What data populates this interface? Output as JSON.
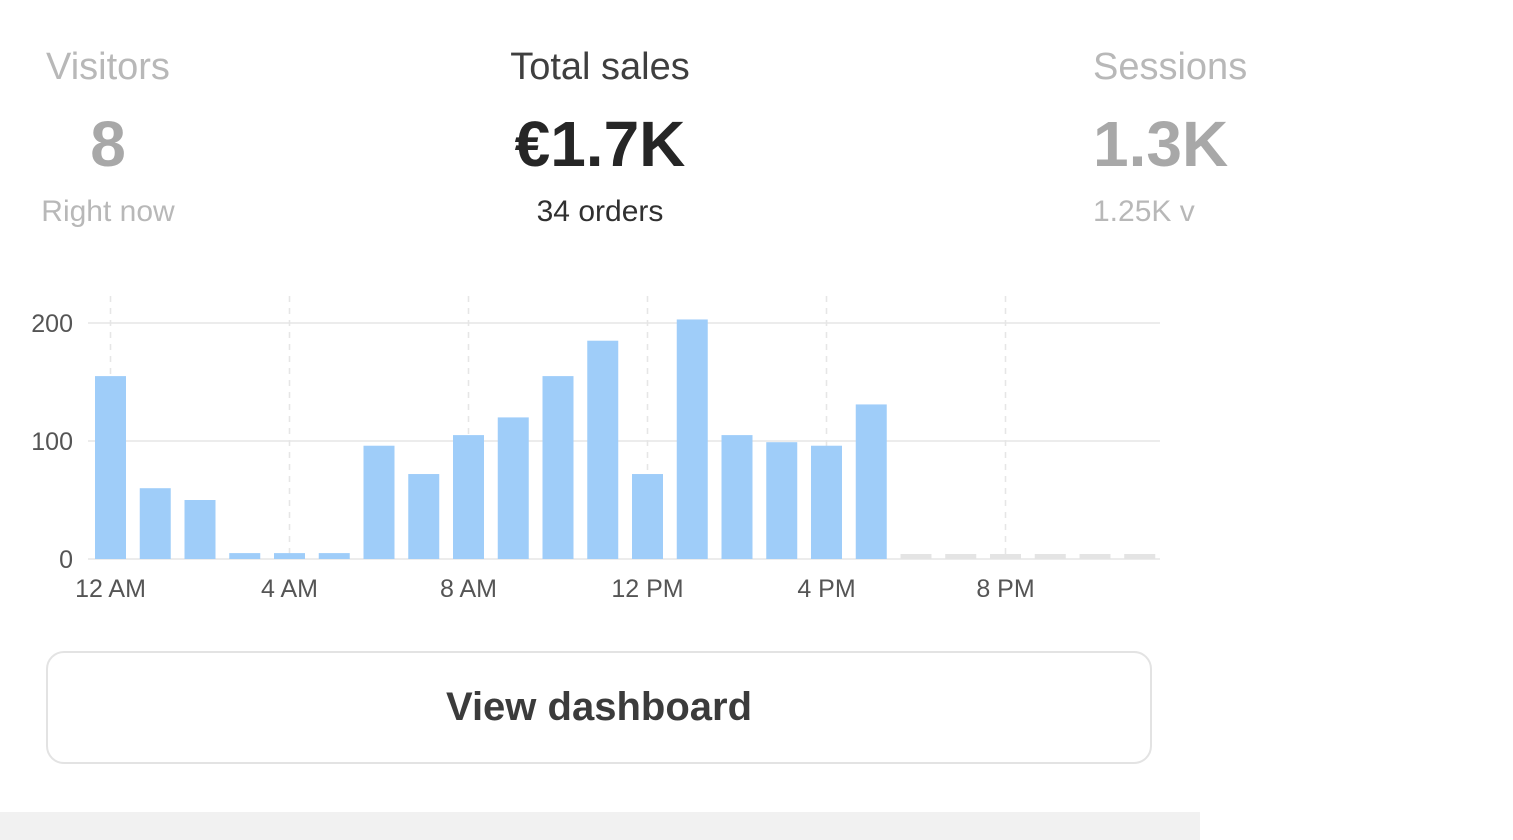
{
  "metrics": {
    "visitors": {
      "label": "Visitors",
      "value": "8",
      "sub": "Right now"
    },
    "sales": {
      "label": "Total sales",
      "value": "€1.7K",
      "sub": "34 orders"
    },
    "sessions": {
      "label": "Sessions",
      "value": "1.3K",
      "sub": "1.25K v"
    }
  },
  "colors": {
    "bar": "#9fcdf9",
    "bar_empty": "#e4e4e4",
    "grid": "#e6e6e6"
  },
  "chart_data": {
    "type": "bar",
    "categories": [
      "12 AM",
      "1 AM",
      "2 AM",
      "3 AM",
      "4 AM",
      "5 AM",
      "6 AM",
      "7 AM",
      "8 AM",
      "9 AM",
      "10 AM",
      "11 AM",
      "12 PM",
      "1 PM",
      "2 PM",
      "3 PM",
      "4 PM",
      "5 PM",
      "6 PM",
      "7 PM",
      "8 PM",
      "9 PM",
      "10 PM",
      "11 PM"
    ],
    "values": [
      155,
      60,
      50,
      5,
      5,
      5,
      96,
      72,
      105,
      120,
      155,
      185,
      72,
      203,
      105,
      99,
      96,
      131,
      0,
      0,
      0,
      0,
      0,
      0
    ],
    "has_data": [
      true,
      true,
      true,
      true,
      true,
      true,
      true,
      true,
      true,
      true,
      true,
      true,
      true,
      true,
      true,
      true,
      true,
      true,
      false,
      false,
      false,
      false,
      false,
      false
    ],
    "x_tick_labels": [
      "12 AM",
      "4 AM",
      "8 AM",
      "12 PM",
      "4 PM",
      "8 PM"
    ],
    "x_tick_indices": [
      0,
      4,
      8,
      12,
      16,
      20
    ],
    "y_ticks": [
      0,
      100,
      200
    ],
    "ylim": [
      0,
      220
    ],
    "grid": true
  },
  "button": {
    "label": "View dashboard"
  }
}
